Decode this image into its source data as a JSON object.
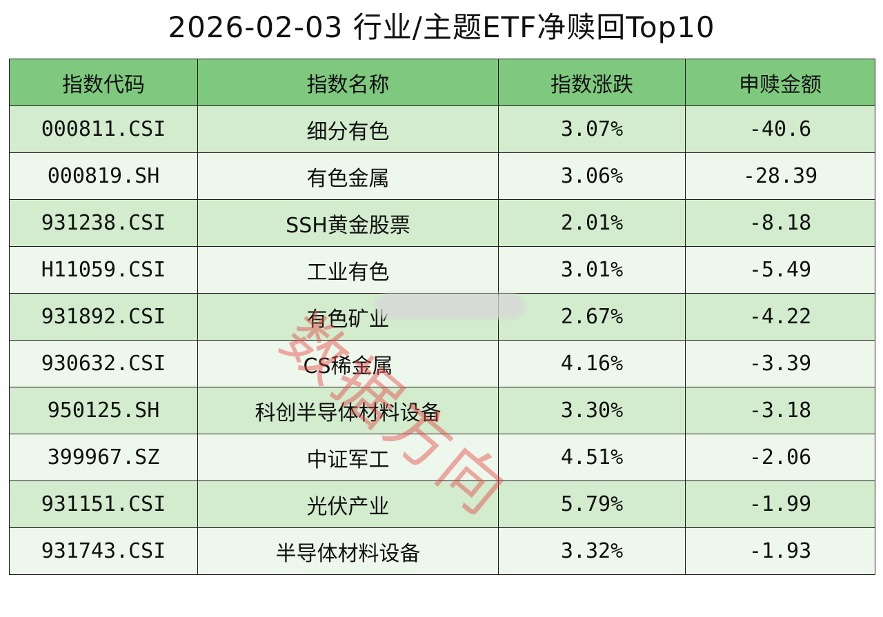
{
  "title": "2026-02-03 行业/主题ETF净赎回Top10",
  "chart_data": {
    "type": "table",
    "columns": [
      "指数代码",
      "指数名称",
      "指数涨跌",
      "申赎金额"
    ],
    "rows": [
      [
        "000811.CSI",
        "细分有色",
        "3.07%",
        "-40.6"
      ],
      [
        "000819.SH",
        "有色金属",
        "3.06%",
        "-28.39"
      ],
      [
        "931238.CSI",
        "SSH黄金股票",
        "2.01%",
        "-8.18"
      ],
      [
        "H11059.CSI",
        "工业有色",
        "3.01%",
        "-5.49"
      ],
      [
        "931892.CSI",
        "有色矿业",
        "2.67%",
        "-4.22"
      ],
      [
        "930632.CSI",
        "CS稀金属",
        "4.16%",
        "-3.39"
      ],
      [
        "950125.SH",
        "科创半导体材料设备",
        "3.30%",
        "-3.18"
      ],
      [
        "399967.SZ",
        "中证军工",
        "4.51%",
        "-2.06"
      ],
      [
        "931151.CSI",
        "光伏产业",
        "5.79%",
        "-1.99"
      ],
      [
        "931743.CSI",
        "半导体材料设备",
        "3.32%",
        "-1.93"
      ]
    ]
  },
  "watermark": "数据方向",
  "colors": {
    "header_bg": "#7fc97f",
    "row_odd_bg": "#d2eccd",
    "row_even_bg": "#eef7eb",
    "watermark": "#e64646"
  }
}
